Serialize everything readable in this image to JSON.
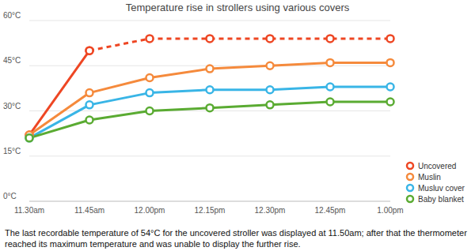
{
  "chart_data": {
    "type": "line",
    "title": "Temperature rise in strollers using various covers",
    "categories": [
      "11.30am",
      "11.45am",
      "12.00pm",
      "12.15pm",
      "12.30pm",
      "12.45pm",
      "1.00pm"
    ],
    "series": [
      {
        "name": "Uncovered",
        "color": "#ee4623",
        "marker": "circle",
        "line_style": "solid",
        "values": [
          22,
          50,
          null,
          null,
          null,
          null,
          null
        ]
      },
      {
        "name": "Uncovered",
        "color": "#ee4623",
        "marker": "circle",
        "line_style": "dashed",
        "values": [
          null,
          50,
          54,
          54,
          54,
          54,
          54
        ]
      },
      {
        "name": "Muslin",
        "color": "#f58a3c",
        "marker": "circle",
        "line_style": "solid",
        "values": [
          22,
          36,
          41,
          44,
          45,
          46,
          46
        ]
      },
      {
        "name": "Musluv cover",
        "color": "#39b5e6",
        "marker": "circle",
        "line_style": "solid",
        "values": [
          21,
          32,
          36,
          37,
          37,
          38,
          38
        ]
      },
      {
        "name": "Baby blanket",
        "color": "#5aab32",
        "marker": "circle",
        "line_style": "solid",
        "values": [
          21,
          27,
          30,
          31,
          32,
          33,
          33
        ]
      }
    ],
    "ylim": [
      0,
      60
    ],
    "yticks": [
      {
        "value": 0,
        "label": "0°C"
      },
      {
        "value": 15,
        "label": "15°C"
      },
      {
        "value": 30,
        "label": "30°C"
      },
      {
        "value": 45,
        "label": "45°C"
      },
      {
        "value": 60,
        "label": "60°C"
      }
    ],
    "grid": true,
    "legend": "right",
    "note": "The last recordable temperature of 54°C for the uncovered stroller was displayed at 11.50am; after that the thermometer reached its maximum temperature and was unable to display the further rise."
  }
}
